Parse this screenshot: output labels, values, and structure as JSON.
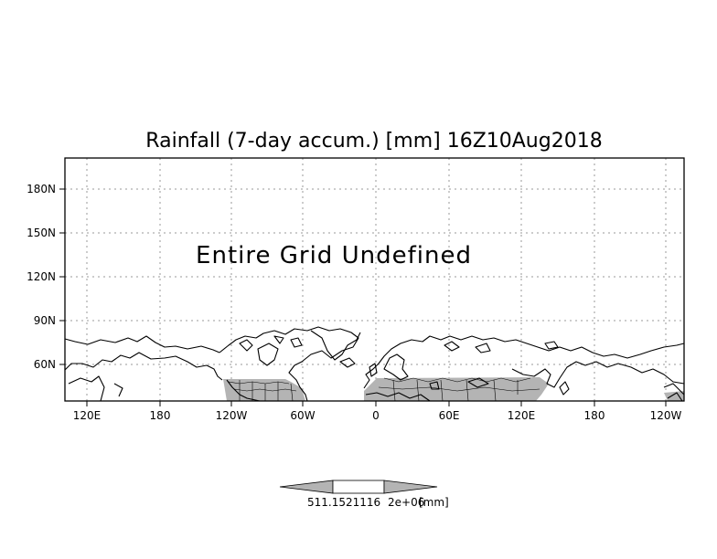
{
  "title": "Rainfall (7-day accum.) [mm] 16Z10Aug2018",
  "message": "Entire Grid Undefined",
  "map": {
    "y_axis_labels": [
      "180N",
      "150N",
      "120N",
      "90N",
      "60N"
    ],
    "x_axis_labels": [
      "120E",
      "180",
      "120W",
      "60W",
      "0",
      "60E",
      "120E",
      "180",
      "120W"
    ],
    "colors": {
      "frame": "#000000",
      "grid": "#9a9a9a",
      "undefined_fill": "#b4b4b4",
      "coast": "#000000"
    }
  },
  "colorbar": {
    "labels": [
      "511.1521116",
      "2e+06"
    ],
    "unit": "[mm]",
    "colors": {
      "arrows": "#b4b4b4",
      "center": "#ffffff"
    }
  }
}
